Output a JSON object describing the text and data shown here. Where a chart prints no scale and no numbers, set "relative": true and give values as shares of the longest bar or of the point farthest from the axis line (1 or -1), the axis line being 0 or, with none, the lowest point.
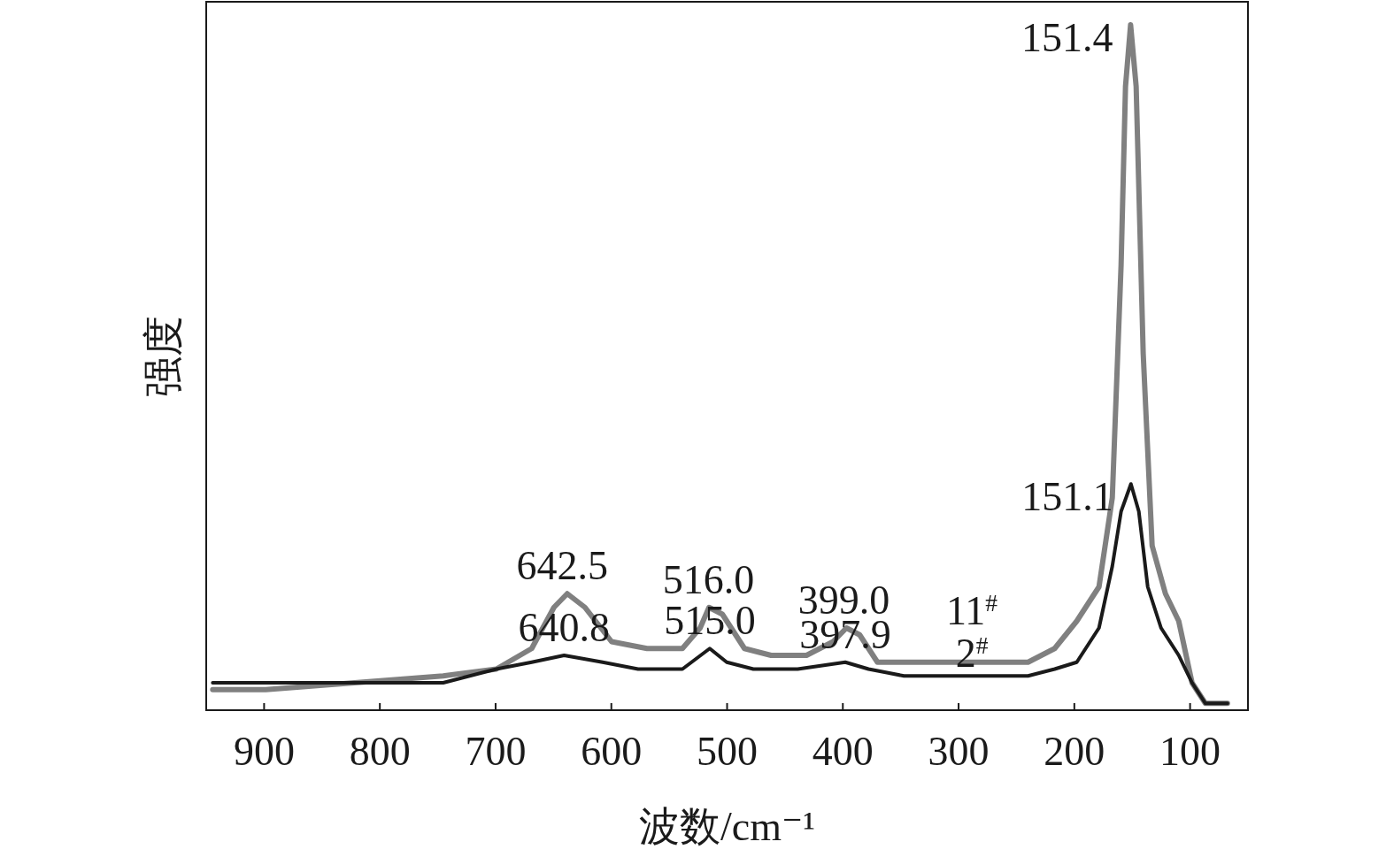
{
  "chart_data": {
    "type": "line",
    "xlabel": "波数/cm⁻¹",
    "ylabel": "强度",
    "relative": true,
    "xlim": [
      950,
      50
    ],
    "xticks": [
      900,
      800,
      700,
      600,
      500,
      400,
      300,
      200,
      100
    ],
    "series": [
      {
        "name": "11$^{#}$",
        "color": "#808080",
        "x": [
          944.4,
          898.5,
          821.9,
          745.3,
          699.4,
          668.8,
          649.6,
          638.1,
          622.8,
          599.8,
          569.2,
          538.6,
          523.3,
          515.6,
          504.1,
          485.0,
          462.0,
          431.4,
          408.4,
          396.9,
          385.5,
          370.1,
          347.2,
          285.9,
          240.0,
          217.0,
          197.9,
          178.7,
          167.2,
          159.6,
          155.8,
          151.4,
          146.6,
          140.5,
          132.8,
          121.3,
          109.8,
          98.3,
          86.8,
          67.7
        ],
        "values": [
          0.03,
          0.03,
          0.04,
          0.05,
          0.06,
          0.09,
          0.15,
          0.17,
          0.15,
          0.1,
          0.09,
          0.09,
          0.12,
          0.15,
          0.14,
          0.09,
          0.08,
          0.08,
          0.1,
          0.12,
          0.11,
          0.07,
          0.07,
          0.07,
          0.07,
          0.09,
          0.13,
          0.18,
          0.31,
          0.65,
          0.91,
          1,
          0.91,
          0.52,
          0.24,
          0.17,
          0.13,
          0.04,
          0.01,
          0.01
        ]
      },
      {
        "name": "2$^{#}$",
        "color": "#1a1a1a",
        "x": [
          944.4,
          898.5,
          821.9,
          745.3,
          699.4,
          668.8,
          640.8,
          607.5,
          576.9,
          538.6,
          515.0,
          500.3,
          477.3,
          439.0,
          397.9,
          377.8,
          347.2,
          285.9,
          240.0,
          217.0,
          197.9,
          178.7,
          167.2,
          159.6,
          151.1,
          144.3,
          136.6,
          125.1,
          109.8,
          98.3,
          86.8,
          67.7
        ],
        "values": [
          0.04,
          0.04,
          0.04,
          0.04,
          0.06,
          0.07,
          0.08,
          0.07,
          0.06,
          0.06,
          0.09,
          0.07,
          0.06,
          0.06,
          0.07,
          0.06,
          0.05,
          0.05,
          0.05,
          0.06,
          0.07,
          0.12,
          0.21,
          0.29,
          0.33,
          0.29,
          0.18,
          0.12,
          0.08,
          0.04,
          0.01,
          0.01
        ]
      }
    ],
    "annotations": [
      {
        "text": "151.4",
        "x": 151.4,
        "y": 1
      },
      {
        "text": "151.1",
        "x": 151.1,
        "y": 0.33
      },
      {
        "text": "642.5",
        "x": 642.5,
        "y": 0.17
      },
      {
        "text": "516.0",
        "x": 516.0,
        "y": 0.15
      },
      {
        "text": "399.0",
        "x": 399.0,
        "y": 0.12
      },
      {
        "text": "640.8",
        "x": 640.8,
        "y": 0.08
      },
      {
        "text": "515.0",
        "x": 515.0,
        "y": 0.09
      },
      {
        "text": "397.9",
        "x": 397.9,
        "y": 0.07
      }
    ]
  }
}
